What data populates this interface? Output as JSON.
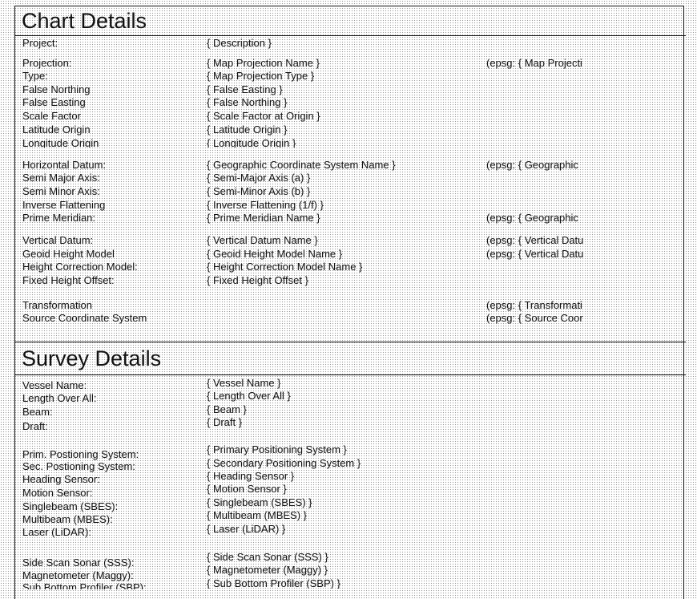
{
  "chart_section": {
    "title": "Chart Details",
    "rows": [
      {
        "label": "Project:",
        "value": "{ Description }",
        "epsg": ""
      },
      {
        "label": "Projection:",
        "value": "{ Map Projection Name }",
        "epsg": "(epsg: { Map Projecti"
      },
      {
        "label": "Type:",
        "value": "{ Map Projection Type }",
        "epsg": ""
      },
      {
        "label": "False Northing",
        "value": "{ False Easting }",
        "epsg": ""
      },
      {
        "label": "False Easting",
        "value": "{ False Northing }",
        "epsg": ""
      },
      {
        "label": "Scale Factor",
        "value": "{ Scale Factor at Origin }",
        "epsg": ""
      },
      {
        "label": "Latitude Origin",
        "value": "{ Latitude Origin }",
        "epsg": ""
      },
      {
        "label": "Longitude Origin",
        "value": "{ Longitude Origin }",
        "epsg": ""
      },
      {
        "label": "Horizontal Datum:",
        "value": "{ Geographic Coordinate System Name }",
        "epsg": "(epsg: { Geographic"
      },
      {
        "label": "Semi Major Axis:",
        "value": "{ Semi-Major Axis (a) }",
        "epsg": ""
      },
      {
        "label": "Semi Minor Axis:",
        "value": "{ Semi-Minor Axis (b) }",
        "epsg": ""
      },
      {
        "label": "Inverse Flattening",
        "value": "{ Inverse Flattening (1/f) }",
        "epsg": ""
      },
      {
        "label": "Prime Meridian:",
        "value": "{ Prime Meridian Name }",
        "epsg": "(epsg: { Geographic"
      },
      {
        "label": "Vertical Datum:",
        "value": "{ Vertical Datum Name }",
        "epsg": "(epsg: { Vertical Datu"
      },
      {
        "label": "Geoid Height Model",
        "value": "{ Geoid Height Model Name }",
        "epsg": "(epsg: { Vertical Datu"
      },
      {
        "label": "Height Correction Model:",
        "value": "{ Height Correction Model Name }",
        "epsg": ""
      },
      {
        "label": "Fixed Height Offset:",
        "value": "{ Fixed Height Offset }",
        "epsg": ""
      },
      {
        "label": "Transformation",
        "value": "",
        "epsg": "(epsg: { Transformati"
      },
      {
        "label": "Source Coordinate System",
        "value": "",
        "epsg": "(epsg: { Source Coor"
      }
    ]
  },
  "survey_section": {
    "title": "Survey Details",
    "rows": [
      {
        "label": "Vessel Name:",
        "value": "{ Vessel Name }"
      },
      {
        "label": "Length Over All:",
        "value": "{ Length Over All }"
      },
      {
        "label": "Beam:",
        "value": "{ Beam }"
      },
      {
        "label": "Draft:",
        "value": "{ Draft }"
      },
      {
        "label": "Prim. Postioning System:",
        "value": "{ Primary Positioning System }"
      },
      {
        "label": "Sec.  Postioning System:",
        "value": "{ Secondary Positioning System }"
      },
      {
        "label": "Heading Sensor:",
        "value": "{ Heading Sensor }"
      },
      {
        "label": "Motion Sensor:",
        "value": "{ Motion Sensor }"
      },
      {
        "label": "Singlebeam (SBES):",
        "value": "{ Singlebeam (SBES) }"
      },
      {
        "label": "Multibeam (MBES):",
        "value": "{ Multibeam (MBES) }"
      },
      {
        "label": "Laser (LiDAR):",
        "value": "{ Laser (LiDAR) }"
      },
      {
        "label": "Side Scan Sonar (SSS):",
        "value": "{ Side Scan Sonar (SSS) }"
      },
      {
        "label": "Magnetometer (Maggy):",
        "value": "{ Magnetometer (Maggy) }"
      },
      {
        "label": "Sub Bottom Profiler (SBP):",
        "value": "{ Sub Bottom Profiler (SBP) }"
      }
    ]
  }
}
